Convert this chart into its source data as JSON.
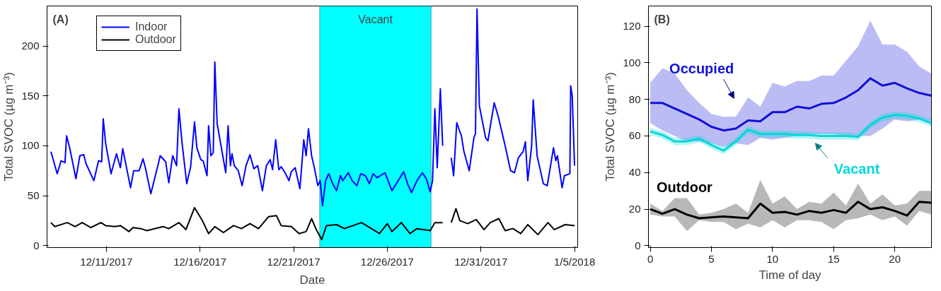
{
  "chart_data": [
    {
      "type": "line",
      "title": "(A)",
      "xlabel": "Date",
      "ylabel": "Total SVOC (µg m⁻³)",
      "xlim": [
        "2017-12-07T20:00",
        "2018-01-05T04:00"
      ],
      "ylim": [
        -2,
        240
      ],
      "xticks": [
        {
          "value": "2017-12-11",
          "label": "12/11/2017"
        },
        {
          "value": "2017-12-16",
          "label": "12/16/2017"
        },
        {
          "value": "2017-12-21",
          "label": "12/21/2017"
        },
        {
          "value": "2017-12-26",
          "label": "12/26/2017"
        },
        {
          "value": "2017-12-31",
          "label": "12/31/2017"
        },
        {
          "value": "2018-01-05",
          "label": "1/5/2018"
        }
      ],
      "yticks": [
        0,
        50,
        100,
        150,
        200
      ],
      "grid": false,
      "legend": "top left",
      "bands": [
        {
          "axis": "x",
          "from": "2017-12-22T09:20",
          "to": "2017-12-28T08:10",
          "label": "Vacant",
          "color": "#00ffff"
        }
      ],
      "series": [
        {
          "name": "Indoor",
          "color": "#0000ff",
          "x": [
            "2017-12-08T01:00",
            "2017-12-08T09:00",
            "2017-12-08T14:00",
            "2017-12-08T19:00",
            "2017-12-08T21:00",
            "2017-12-09T01:00",
            "2017-12-09T09:00",
            "2017-12-09T14:00",
            "2017-12-09T19:00",
            "2017-12-09T22:00",
            "2017-12-10T08:00",
            "2017-12-10T14:00",
            "2017-12-10T18:00",
            "2017-12-10T20:00",
            "2017-12-10T23:00",
            "2017-12-11T06:00",
            "2017-12-11T13:00",
            "2017-12-11T18:00",
            "2017-12-11T21:00",
            "2017-12-12T07:00",
            "2017-12-12T11:00",
            "2017-12-12T18:00",
            "2017-12-12T23:00",
            "2017-12-13T02:00",
            "2017-12-13T09:00",
            "2017-12-13T18:00",
            "2017-12-13T21:00",
            "2017-12-14T04:00",
            "2017-12-14T08:00",
            "2017-12-14T13:00",
            "2017-12-14T18:00",
            "2017-12-14T21:00",
            "2017-12-15T01:00",
            "2017-12-15T07:00",
            "2017-12-15T12:00",
            "2017-12-15T17:00",
            "2017-12-15T20:00",
            "2017-12-16T01:00",
            "2017-12-16T04:00",
            "2017-12-16T09:00",
            "2017-12-16T11:00",
            "2017-12-16T14:00",
            "2017-12-16T17:00",
            "2017-12-16T19:00",
            "2017-12-16T22:00",
            "2017-12-17T09:00",
            "2017-12-17T12:00",
            "2017-12-17T15:00",
            "2017-12-17T17:00",
            "2017-12-17T20:00",
            "2017-12-18T01:00",
            "2017-12-18T06:00",
            "2017-12-18T11:00",
            "2017-12-18T16:00",
            "2017-12-18T21:00",
            "2017-12-19T02:00",
            "2017-12-19T08:00",
            "2017-12-19T13:00",
            "2017-12-19T18:00",
            "2017-12-19T21:00",
            "2017-12-20T01:00",
            "2017-12-20T05:00",
            "2017-12-20T08:00",
            "2017-12-20T13:00",
            "2017-12-20T18:00",
            "2017-12-20T21:00",
            "2017-12-21T02:00",
            "2017-12-21T08:00",
            "2017-12-21T13:00",
            "2017-12-21T16:00",
            "2017-12-21T19:00",
            "2017-12-21T23:00",
            "2017-12-22T02:00",
            "2017-12-22T07:00",
            "2017-12-22T10:00",
            "2017-12-22T13:00",
            "2017-12-22T17:00",
            "2017-12-22T21:00",
            "2017-12-23T02:00",
            "2017-12-23T07:00",
            "2017-12-23T12:00",
            "2017-12-23T15:00",
            "2017-12-23T22:00",
            "2017-12-24T03:00",
            "2017-12-24T09:00",
            "2017-12-24T14:00",
            "2017-12-24T20:00",
            "2017-12-25T01:00",
            "2017-12-25T06:00",
            "2017-12-25T11:00",
            "2017-12-25T21:00",
            "2017-12-26T00:00",
            "2017-12-26T06:00",
            "2017-12-26T14:00",
            "2017-12-26T21:00",
            "2017-12-27T02:00",
            "2017-12-27T07:00",
            "2017-12-27T14:00",
            "2017-12-27T21:00",
            "2017-12-28T02:00",
            "2017-12-28T07:00",
            "2017-12-28T10:00",
            "2017-12-28T13:00",
            "2017-12-28T16:00",
            "2017-12-28T20:00",
            "2017-12-28T23:00",
            "2017-12-29T06:00",
            "2017-12-29T10:00",
            "2017-12-29T13:00",
            "2017-12-29T17:00",
            "2017-12-29T23:00",
            "2017-12-30T02:00",
            "2017-12-30T09:00",
            "2017-12-30T15:00",
            "2017-12-30T17:00",
            "2017-12-30T19:00",
            "2017-12-30T22:00",
            "2017-12-31T06:00",
            "2017-12-31T09:00",
            "2017-12-31T17:00",
            "2017-12-31T22:00",
            "2018-01-01T07:00",
            "2018-01-01T14:00",
            "2018-01-01T19:00",
            "2018-01-02T00:00",
            "2018-01-02T06:00",
            "2018-01-02T09:00",
            "2018-01-02T12:00",
            "2018-01-02T17:00",
            "2018-01-02T19:00",
            "2018-01-03T00:00",
            "2018-01-03T08:00",
            "2018-01-03T13:00",
            "2018-01-03T21:00",
            "2018-01-04T00:00",
            "2018-01-04T02:00",
            "2018-01-04T08:00",
            "2018-01-04T11:00",
            "2018-01-04T18:00",
            "2018-01-04T19:00",
            "2018-01-04T21:00",
            "2018-01-05T00:00"
          ],
          "values": [
            94,
            72,
            85,
            83,
            110,
            98,
            67,
            90,
            91,
            82,
            65,
            85,
            84,
            127,
            103,
            72,
            92,
            78,
            97,
            58,
            75,
            75,
            87,
            78,
            52,
            80,
            90,
            84,
            63,
            90,
            80,
            137,
            103,
            62,
            79,
            124,
            98,
            86,
            85,
            70,
            120,
            90,
            93,
            184,
            122,
            73,
            120,
            80,
            92,
            80,
            75,
            60,
            80,
            91,
            77,
            80,
            55,
            80,
            86,
            76,
            106,
            76,
            79,
            73,
            65,
            74,
            78,
            57,
            106,
            90,
            117,
            90,
            80,
            60,
            65,
            40,
            65,
            72,
            62,
            55,
            70,
            65,
            73,
            65,
            60,
            72,
            70,
            62,
            72,
            68,
            73,
            67,
            55,
            65,
            74,
            62,
            53,
            65,
            73,
            67,
            54,
            65,
            137,
            78,
            157,
            100,
            null,
            88,
            70,
            123,
            110,
            95,
            75,
            108,
            112,
            237,
            140,
            108,
            105,
            143,
            130,
            100,
            75,
            73,
            88,
            94,
            104,
            65,
            100,
            146,
            90,
            62,
            60,
            98,
            85,
            90,
            58,
            70,
            72,
            160,
            150,
            80
          ]
        },
        {
          "name": "Outdoor",
          "color": "#000000",
          "x": [
            "2017-12-08T01:00",
            "2017-12-08T06:00",
            "2017-12-08T22:00",
            "2017-12-09T08:00",
            "2017-12-09T17:00",
            "2017-12-10T04:00",
            "2017-12-10T17:00",
            "2017-12-10T23:00",
            "2017-12-11T11:00",
            "2017-12-11T18:00",
            "2017-12-12T05:00",
            "2017-12-12T10:00",
            "2017-12-12T20:00",
            "2017-12-13T04:00",
            "2017-12-14T01:00",
            "2017-12-14T08:00",
            "2017-12-14T21:00",
            "2017-12-15T06:00",
            "2017-12-15T17:00",
            "2017-12-16T03:00",
            "2017-12-16T11:00",
            "2017-12-16T19:00",
            "2017-12-17T06:00",
            "2017-12-17T19:00",
            "2017-12-18T05:00",
            "2017-12-18T16:00",
            "2017-12-19T03:00",
            "2017-12-19T16:00",
            "2017-12-20T02:00",
            "2017-12-20T08:00",
            "2017-12-20T21:00",
            "2017-12-21T07:00",
            "2017-12-21T16:00",
            "2017-12-21T23:00",
            "2017-12-22T05:00",
            "2017-12-22T12:00",
            "2017-12-22T18:00",
            "2017-12-23T07:00",
            "2017-12-23T17:00",
            "2017-12-24T15:00",
            "2017-12-25T14:00",
            "2017-12-26T00:00",
            "2017-12-26T06:00",
            "2017-12-26T18:00",
            "2017-12-27T05:00",
            "2017-12-27T14:00",
            "2017-12-28T07:00",
            "2017-12-28T13:00",
            "2017-12-28T23:00",
            "2017-12-29T06:00",
            "2017-12-29T10:00",
            "2017-12-29T16:00",
            "2017-12-29T21:00",
            "2017-12-30T07:00",
            "2017-12-30T18:00",
            "2017-12-31T04:00",
            "2017-12-31T12:00",
            "2017-12-31T23:00",
            "2018-01-01T07:00",
            "2018-01-01T17:00",
            "2018-01-02T03:00",
            "2018-01-02T12:00",
            "2018-01-03T01:00",
            "2018-01-03T14:00",
            "2018-01-03T22:00",
            "2018-01-04T12:00",
            "2018-01-05T00:00"
          ],
          "values": [
            23,
            19,
            23,
            19,
            23,
            18,
            23,
            20,
            19,
            20,
            14,
            18,
            17,
            15,
            19,
            17,
            23,
            16,
            38,
            25,
            12,
            19,
            13,
            20,
            17,
            22,
            17,
            29,
            30,
            20,
            19,
            12,
            14,
            27,
            16,
            6,
            20,
            21,
            17,
            23,
            12,
            22,
            14,
            23,
            12,
            17,
            15,
            23,
            23,
            null,
            23,
            37,
            25,
            22,
            26,
            16,
            23,
            27,
            15,
            17,
            12,
            21,
            11,
            23,
            16,
            21,
            20
          ]
        }
      ]
    },
    {
      "type": "line",
      "title": "(B)",
      "xlabel": "Time of day",
      "ylabel": "Total SVOC (µg m⁻³)",
      "xlim": [
        -0.15,
        23
      ],
      "ylim": [
        -1,
        131
      ],
      "xticks": [
        0,
        5,
        10,
        15,
        20
      ],
      "yticks": [
        0,
        20,
        40,
        60,
        80,
        100,
        120
      ],
      "grid": false,
      "legend": false,
      "series": [
        {
          "name": "Occupied",
          "color": "#1010d8",
          "x": [
            0,
            1,
            2,
            3,
            4,
            5,
            6,
            7,
            8,
            9,
            10,
            11,
            12,
            13,
            14,
            15,
            16,
            17,
            18,
            19,
            20,
            21,
            22,
            23
          ],
          "values": [
            78,
            78,
            75,
            72,
            69,
            65,
            63,
            64,
            68.5,
            68,
            73,
            73,
            76,
            75,
            77.5,
            78,
            81,
            85,
            91.5,
            87.5,
            89,
            86,
            83.5,
            82
          ],
          "lower": [
            67,
            63,
            60,
            57,
            57,
            56,
            54,
            56,
            55,
            59,
            58,
            59,
            60,
            61,
            61,
            61,
            60,
            60,
            60,
            64,
            69,
            68,
            69,
            68
          ],
          "upper": [
            89,
            97,
            94,
            85,
            78,
            72,
            70.5,
            70.5,
            81,
            76,
            89,
            87,
            90,
            90,
            93,
            93,
            101,
            109,
            123,
            110,
            110,
            106,
            98,
            94
          ]
        },
        {
          "name": "Vacant",
          "color": "#00d8d8",
          "x": [
            0,
            1,
            2,
            3,
            4,
            5,
            6,
            7,
            8,
            9,
            10,
            11,
            12,
            13,
            14,
            15,
            16,
            17,
            18,
            19,
            20,
            21,
            22,
            23
          ],
          "values": [
            62.5,
            60.5,
            57,
            57,
            58.5,
            55,
            52,
            57,
            63.5,
            61,
            61,
            61,
            60.5,
            60.5,
            60,
            60,
            60,
            59.5,
            66,
            70,
            71.5,
            71,
            69.5,
            67
          ],
          "lower": [
            60.5,
            58.5,
            55,
            55,
            56.5,
            53,
            50,
            55,
            61.5,
            59,
            59,
            59,
            58.5,
            58.5,
            58,
            58,
            58,
            57.5,
            64,
            68,
            69.5,
            69,
            67.5,
            65
          ],
          "upper": [
            64.5,
            62.5,
            59,
            59,
            60.5,
            57,
            54,
            59,
            65.5,
            63,
            63,
            63,
            62.5,
            62.5,
            62,
            62,
            62,
            61.5,
            68,
            72,
            73.5,
            73,
            71.5,
            69
          ]
        },
        {
          "name": "Outdoor",
          "color": "#000000",
          "x": [
            0,
            1,
            2,
            3,
            4,
            5,
            6,
            7,
            8,
            9,
            10,
            11,
            12,
            13,
            14,
            15,
            16,
            17,
            18,
            19,
            20,
            21,
            22,
            23
          ],
          "values": [
            20,
            17.5,
            20,
            17,
            15,
            15.5,
            16,
            15.5,
            15,
            23,
            18,
            18.5,
            17,
            19,
            18,
            19.5,
            18,
            24,
            20,
            21,
            19,
            16.5,
            24,
            23.5
          ],
          "lower": [
            17,
            16,
            16,
            8,
            14,
            13,
            13,
            9,
            12,
            10,
            14,
            10,
            14,
            14,
            13,
            9,
            14,
            15,
            17,
            14,
            16,
            11,
            19,
            17
          ],
          "upper": [
            23,
            19,
            26,
            26,
            17,
            18,
            20,
            23,
            18,
            36,
            23,
            27,
            20,
            24,
            23,
            29,
            22,
            34,
            23,
            28,
            22,
            23,
            30,
            30
          ]
        }
      ]
    }
  ]
}
